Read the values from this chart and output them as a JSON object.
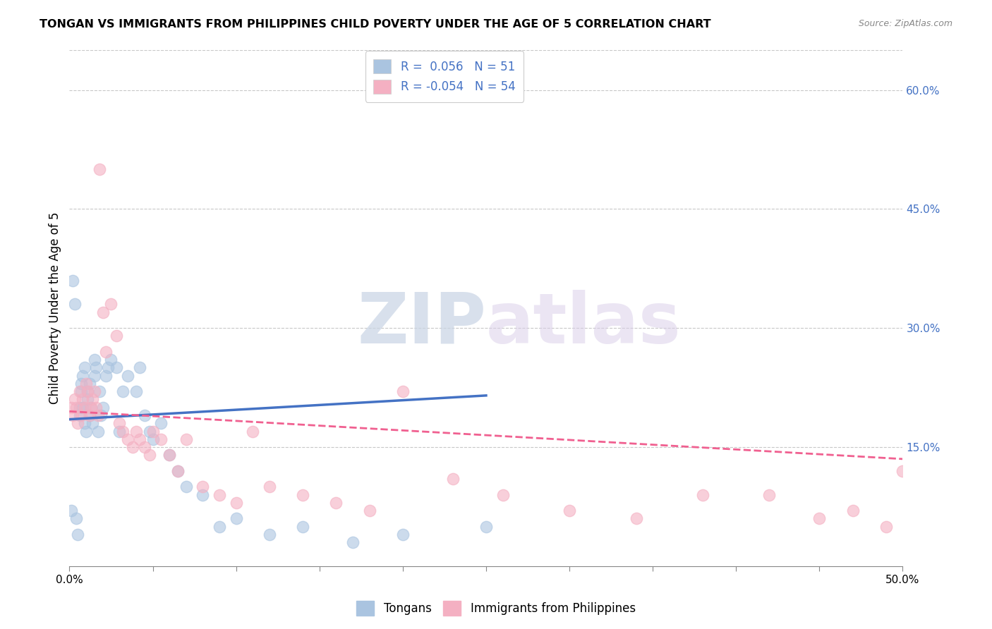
{
  "title": "TONGAN VS IMMIGRANTS FROM PHILIPPINES CHILD POVERTY UNDER THE AGE OF 5 CORRELATION CHART",
  "source": "Source: ZipAtlas.com",
  "ylabel": "Child Poverty Under the Age of 5",
  "right_yticks": [
    "60.0%",
    "45.0%",
    "30.0%",
    "15.0%"
  ],
  "right_ytick_vals": [
    0.6,
    0.45,
    0.3,
    0.15
  ],
  "legend_tongans": "Tongans",
  "legend_philippines": "Immigrants from Philippines",
  "R_tongan": 0.056,
  "N_tongan": 51,
  "R_philippines": -0.054,
  "N_philippines": 54,
  "tongan_color": "#aac4e0",
  "philippines_color": "#f4b0c2",
  "tongan_line_color": "#4472c4",
  "philippines_line_color": "#f06090",
  "right_axis_color": "#4472c4",
  "watermark_zip": "ZIP",
  "watermark_atlas": "atlas",
  "xlim": [
    0.0,
    0.5
  ],
  "ylim": [
    0.0,
    0.65
  ],
  "grid_color": "#c8c8c8",
  "tongan_x": [
    0.001,
    0.002,
    0.003,
    0.004,
    0.005,
    0.006,
    0.006,
    0.007,
    0.007,
    0.008,
    0.008,
    0.009,
    0.009,
    0.01,
    0.011,
    0.011,
    0.012,
    0.012,
    0.013,
    0.014,
    0.015,
    0.015,
    0.016,
    0.017,
    0.018,
    0.019,
    0.02,
    0.022,
    0.023,
    0.025,
    0.028,
    0.03,
    0.032,
    0.035,
    0.04,
    0.042,
    0.045,
    0.048,
    0.05,
    0.055,
    0.06,
    0.065,
    0.07,
    0.08,
    0.09,
    0.1,
    0.12,
    0.14,
    0.17,
    0.2,
    0.25
  ],
  "tongan_y": [
    0.07,
    0.36,
    0.33,
    0.06,
    0.04,
    0.19,
    0.2,
    0.22,
    0.23,
    0.2,
    0.24,
    0.25,
    0.18,
    0.17,
    0.22,
    0.21,
    0.19,
    0.23,
    0.2,
    0.18,
    0.24,
    0.26,
    0.25,
    0.17,
    0.22,
    0.19,
    0.2,
    0.24,
    0.25,
    0.26,
    0.25,
    0.17,
    0.22,
    0.24,
    0.22,
    0.25,
    0.19,
    0.17,
    0.16,
    0.18,
    0.14,
    0.12,
    0.1,
    0.09,
    0.05,
    0.06,
    0.04,
    0.05,
    0.03,
    0.04,
    0.05
  ],
  "philippines_x": [
    0.001,
    0.002,
    0.003,
    0.004,
    0.005,
    0.006,
    0.007,
    0.008,
    0.009,
    0.01,
    0.011,
    0.012,
    0.013,
    0.014,
    0.015,
    0.016,
    0.017,
    0.018,
    0.02,
    0.022,
    0.025,
    0.028,
    0.03,
    0.032,
    0.035,
    0.038,
    0.04,
    0.042,
    0.045,
    0.048,
    0.05,
    0.055,
    0.06,
    0.065,
    0.07,
    0.08,
    0.09,
    0.1,
    0.11,
    0.12,
    0.14,
    0.16,
    0.18,
    0.2,
    0.23,
    0.26,
    0.3,
    0.34,
    0.38,
    0.42,
    0.45,
    0.47,
    0.49,
    0.5
  ],
  "philippines_y": [
    0.2,
    0.19,
    0.21,
    0.2,
    0.18,
    0.22,
    0.19,
    0.21,
    0.2,
    0.23,
    0.22,
    0.19,
    0.2,
    0.21,
    0.22,
    0.2,
    0.19,
    0.5,
    0.32,
    0.27,
    0.33,
    0.29,
    0.18,
    0.17,
    0.16,
    0.15,
    0.17,
    0.16,
    0.15,
    0.14,
    0.17,
    0.16,
    0.14,
    0.12,
    0.16,
    0.1,
    0.09,
    0.08,
    0.17,
    0.1,
    0.09,
    0.08,
    0.07,
    0.22,
    0.11,
    0.09,
    0.07,
    0.06,
    0.09,
    0.09,
    0.06,
    0.07,
    0.05,
    0.12
  ]
}
